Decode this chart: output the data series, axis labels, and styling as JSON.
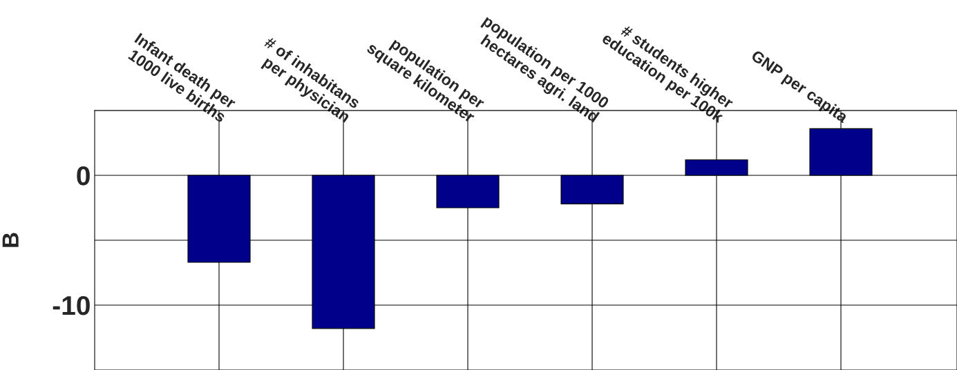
{
  "chart_data": {
    "type": "bar",
    "ylabel": "B",
    "categories": [
      "Infant death per\n1000 live births",
      "# of inhabitans\nper physician",
      "population per\nsquare kilometer",
      "population per 1000\nhectares agri. land",
      "# students higher\neducation per 100k",
      "GNP per capita"
    ],
    "values": [
      -6.7,
      -11.8,
      -2.5,
      -2.2,
      1.2,
      3.6
    ],
    "color": "#00008b",
    "ylim": [
      -15,
      5
    ],
    "yticks": [
      {
        "value": 5,
        "label": null
      },
      0,
      {
        "value": -5,
        "label": null
      },
      -10
    ],
    "grid": true
  }
}
